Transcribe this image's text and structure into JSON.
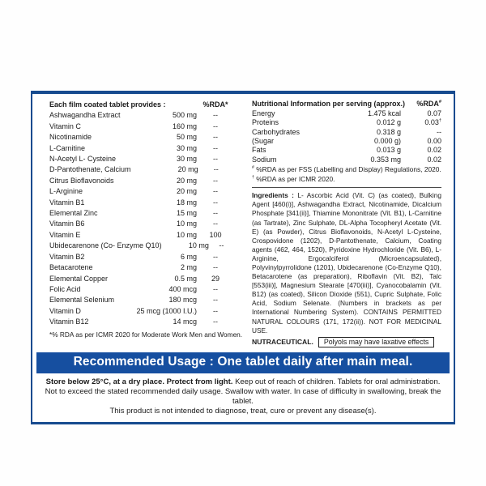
{
  "colors": {
    "accent_blue": "#164fa0",
    "border_blue": "#174b8f",
    "text": "#1b1b1b"
  },
  "supplement_facts": {
    "header": "Each film coated tablet provides :",
    "rda_header": "%RDA*",
    "rows": [
      {
        "name": "Ashwagandha Extract",
        "amount": "500 mg",
        "rda": "--"
      },
      {
        "name": "Vitamin C",
        "amount": "160 mg",
        "rda": "--"
      },
      {
        "name": "Nicotinamide",
        "amount": "50 mg",
        "rda": "--"
      },
      {
        "name": "L-Carnitine",
        "amount": "30 mg",
        "rda": "--"
      },
      {
        "name": "N-Acetyl L- Cysteine",
        "amount": "30 mg",
        "rda": "--"
      },
      {
        "name": "D-Pantothenate, Calcium",
        "amount": "20 mg",
        "rda": "--"
      },
      {
        "name": "Citrus Bioflavonoids",
        "amount": "20 mg",
        "rda": "--"
      },
      {
        "name": "L-Arginine",
        "amount": "20 mg",
        "rda": "--"
      },
      {
        "name": "Vitamin B1",
        "amount": "18 mg",
        "rda": "--"
      },
      {
        "name": "Elemental Zinc",
        "amount": "15 mg",
        "rda": "--"
      },
      {
        "name": "Vitamin B6",
        "amount": "10 mg",
        "rda": "--"
      },
      {
        "name": "Vitamin E",
        "amount": "10 mg",
        "rda": "100"
      },
      {
        "name": "Ubidecarenone (Co- Enzyme Q10)",
        "amount": "10 mg",
        "rda": "--"
      },
      {
        "name": "Vitamin B2",
        "amount": "6 mg",
        "rda": "--"
      },
      {
        "name": "Betacarotene",
        "amount": "2 mg",
        "rda": "--"
      },
      {
        "name": "Elemental Copper",
        "amount": "0.5 mg",
        "rda": "29"
      },
      {
        "name": "Folic Acid",
        "amount": "400 mcg",
        "rda": "--"
      },
      {
        "name": "Elemental Selenium",
        "amount": "180 mcg",
        "rda": "--"
      },
      {
        "name": "Vitamin D",
        "amount": "25 mcg (1000 I.U.)",
        "rda": "--"
      },
      {
        "name": "Vitamin B12",
        "amount": "14 mcg",
        "rda": "--"
      }
    ],
    "footnote": "*% RDA as per ICMR 2020 for Moderate Work Men and Women."
  },
  "nutrition": {
    "header": "Nutritional Information per serving (approx.)",
    "rda_header": "%RDA",
    "rda_header_sup": "#",
    "rows": [
      {
        "name": "Energy",
        "amount": "1.475 kcal",
        "rda": "0.07",
        "rda_sup": ""
      },
      {
        "name": "Proteins",
        "amount": "0.012 g",
        "rda": "0.03",
        "rda_sup": "†"
      },
      {
        "name": "Carbohydrates",
        "amount": "0.318 g",
        "rda": "--",
        "rda_sup": ""
      },
      {
        "name": "(Sugar",
        "amount": "0.000 g)",
        "rda": "0.00",
        "rda_sup": ""
      },
      {
        "name": "Fats",
        "amount": "0.013 g",
        "rda": "0.02",
        "rda_sup": ""
      },
      {
        "name": "Sodium",
        "amount": "0.353 mg",
        "rda": "0.02",
        "rda_sup": ""
      }
    ],
    "notes": [
      {
        "sup": "#",
        "text": "%RDA as per FSS (Labelling and Display) Regulations, 2020."
      },
      {
        "sup": "†",
        "text": "%RDA as per ICMR 2020."
      }
    ]
  },
  "ingredients": {
    "label": "Ingredients :",
    "text": "L- Ascorbic Acid (Vit. C) (as coated), Bulking Agent [460(i)], Ashwagandha Extract, Nicotinamide, Dicalcium Phosphate [341(ii)], Thiamine Mononitrate (Vit. B1), L-Carnitine (as Tartrate), Zinc Sulphate, DL-Alpha Tocopheryl Acetate (Vit. E) (as Powder), Citrus Bioflavonoids, N-Acetyl L-Cysteine, Crospovidone (1202), D-Pantothenate, Calcium, Coating agents (462, 464, 1520), Pyridoxine Hydrochloride (Vit. B6), L-Arginine, Ergocalciferol (Microencapsulated), Polyvinylpyrrolidone (1201), Ubidecarenone (Co-Enzyme Q10), Betacarotene (as preparation), Riboflavin (Vit. B2), Talc [553(iii)], Magnesium Stearate [470(iii)], Cyanocobalamin (Vit. B12) (as coated), Silicon Dioxide (551), Cupric Sulphate, Folic Acid, Sodium Selenate. (Numbers in brackets as per International Numbering System). CONTAINS PERMITTED NATURAL COLOURS (171, 172(ii)). NOT FOR MEDICINAL USE."
  },
  "nutraceutical": "NUTRACEUTICAL.",
  "polyols_note": "Polyols may have laxative effects",
  "banner": "Recommended Usage : One tablet daily after main meal.",
  "storage": {
    "line1_bold": "Store below 25°C, at a dry place. Protect from light.",
    "line1_rest": "Keep out of reach of children. Tablets for oral administration.",
    "line2": "Not to exceed the stated recommended daily usage. Swallow with water. In case of difficulty in swallowing, break the tablet.",
    "line3": "This product is not intended to diagnose, treat, cure or prevent any disease(s)."
  }
}
